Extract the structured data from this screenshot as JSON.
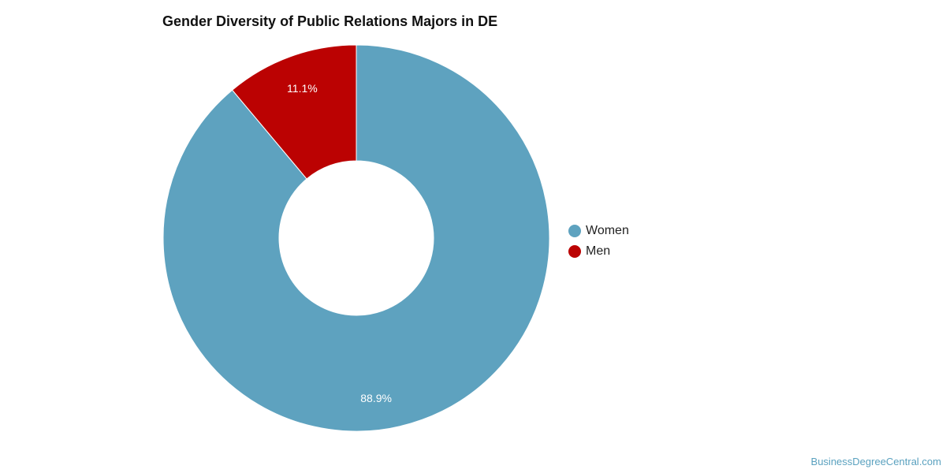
{
  "chart_data": {
    "type": "pie",
    "title": "Gender Diversity of Public Relations Majors in DE",
    "slices": [
      {
        "label": "Women",
        "value": 88.9,
        "display": "88.9%",
        "color": "#5ea2bf"
      },
      {
        "label": "Men",
        "value": 11.1,
        "display": "11.1%",
        "color": "#bb0202"
      }
    ],
    "donut": true,
    "legend_position": "right"
  },
  "source": "BusinessDegreeCentral.com"
}
